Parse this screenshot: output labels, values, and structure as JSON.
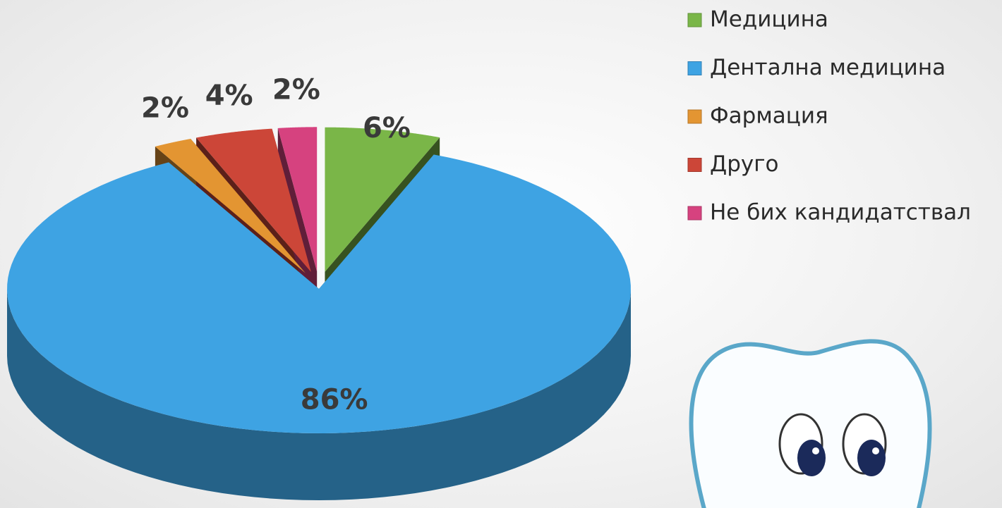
{
  "chart_data": {
    "type": "pie3d",
    "categories": [
      "Медицина",
      "Дентална медицина",
      "Фармация",
      "Друго",
      "Не бих кандидатствал"
    ],
    "values": [
      6,
      86,
      2,
      4,
      2
    ],
    "value_labels": [
      "6%",
      "86%",
      "2%",
      "4%",
      "2%"
    ],
    "colors": [
      "#7ab648",
      "#3ea3e3",
      "#e39532",
      "#cc4638",
      "#d6427f"
    ],
    "legend": "top-right"
  }
}
